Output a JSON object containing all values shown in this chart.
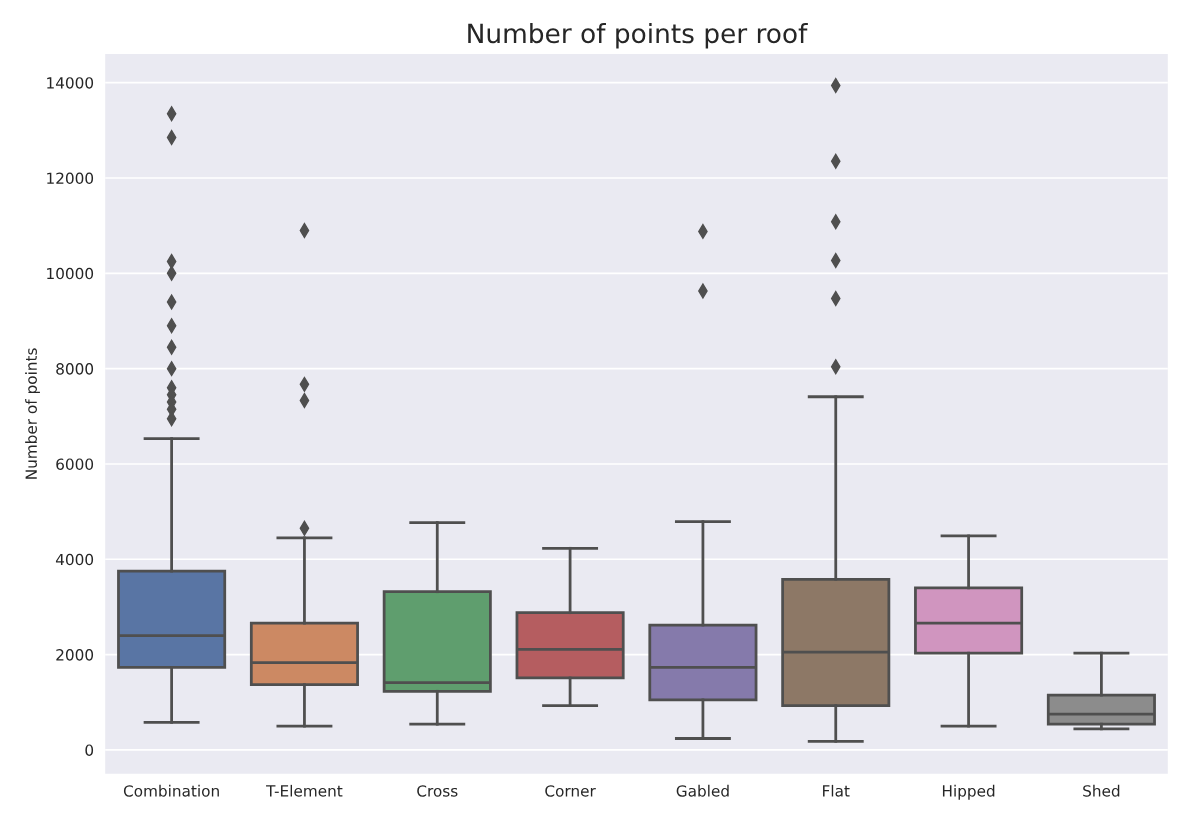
{
  "chart_data": {
    "type": "box",
    "title": "Number of points per roof",
    "ylabel": "Number of points",
    "categories": [
      "Combination",
      "T-Element",
      "Cross",
      "Corner",
      "Gabled",
      "Flat",
      "Hipped",
      "Shed"
    ],
    "colors": [
      "#5975a4",
      "#cc8963",
      "#5f9e6e",
      "#b55d60",
      "#857aab",
      "#8d7866",
      "#d095bf",
      "#8c8c8c"
    ],
    "boxes": [
      {
        "low": 580,
        "q1": 1730,
        "median": 2400,
        "q3": 3750,
        "high": 6530,
        "outliers": [
          13350,
          12850,
          10250,
          10000,
          9400,
          8900,
          8450,
          8000,
          7600,
          7450,
          7300,
          7150,
          6950
        ]
      },
      {
        "low": 500,
        "q1": 1370,
        "median": 1830,
        "q3": 2660,
        "high": 4450,
        "outliers": [
          10900,
          7670,
          7330,
          4650
        ]
      },
      {
        "low": 540,
        "q1": 1230,
        "median": 1410,
        "q3": 3320,
        "high": 4770
      },
      {
        "low": 930,
        "q1": 1510,
        "median": 2110,
        "q3": 2880,
        "high": 4230
      },
      {
        "low": 240,
        "q1": 1050,
        "median": 1730,
        "q3": 2620,
        "high": 4790,
        "outliers": [
          10880,
          9630
        ]
      },
      {
        "low": 180,
        "q1": 930,
        "median": 2050,
        "q3": 3580,
        "high": 7410,
        "outliers": [
          13940,
          12350,
          11080,
          10270,
          9470,
          8040
        ]
      },
      {
        "low": 500,
        "q1": 2030,
        "median": 2660,
        "q3": 3400,
        "high": 4490
      },
      {
        "low": 440,
        "q1": 540,
        "median": 750,
        "q3": 1150,
        "high": 2030
      }
    ],
    "ylim": [
      -500,
      14600
    ],
    "yticks": [
      0,
      2000,
      4000,
      6000,
      8000,
      10000,
      12000,
      14000
    ],
    "grid": "y",
    "marker": "diamond"
  }
}
